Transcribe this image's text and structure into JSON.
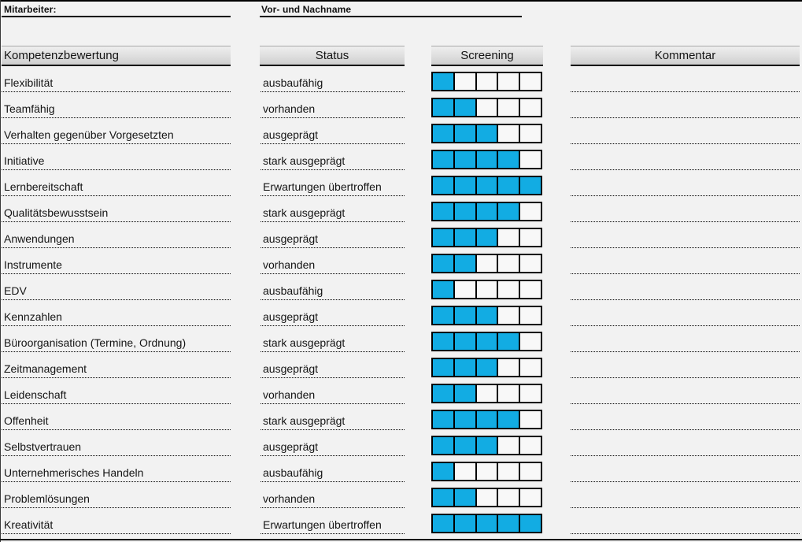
{
  "form": {
    "employee_label": "Mitarbeiter:",
    "employee_name_label": "Vor- und Nachname",
    "employee_name_value": ""
  },
  "table": {
    "headers": {
      "competency": "Kompetenzbewertung",
      "status": "Status",
      "screening": "Screening",
      "comment": "Kommentar"
    },
    "screening_max": 5,
    "rows": [
      {
        "competency": "Flexibilität",
        "status": "ausbaufähig",
        "screening": 1,
        "comment": ""
      },
      {
        "competency": "Teamfähig",
        "status": "vorhanden",
        "screening": 2,
        "comment": ""
      },
      {
        "competency": "Verhalten gegenüber Vorgesetzten",
        "status": "ausgeprägt",
        "screening": 3,
        "comment": ""
      },
      {
        "competency": "Initiative",
        "status": "stark ausgeprägt",
        "screening": 4,
        "comment": ""
      },
      {
        "competency": "Lernbereitschaft",
        "status": "Erwartungen übertroffen",
        "screening": 5,
        "comment": ""
      },
      {
        "competency": "Qualitätsbewusstsein",
        "status": "stark ausgeprägt",
        "screening": 4,
        "comment": ""
      },
      {
        "competency": "Anwendungen",
        "status": "ausgeprägt",
        "screening": 3,
        "comment": ""
      },
      {
        "competency": "Instrumente",
        "status": "vorhanden",
        "screening": 2,
        "comment": ""
      },
      {
        "competency": "EDV",
        "status": "ausbaufähig",
        "screening": 1,
        "comment": ""
      },
      {
        "competency": "Kennzahlen",
        "status": "ausgeprägt",
        "screening": 3,
        "comment": ""
      },
      {
        "competency": "Büroorganisation (Termine, Ordnung)",
        "status": "stark ausgeprägt",
        "screening": 4,
        "comment": ""
      },
      {
        "competency": "Zeitmanagement",
        "status": "ausgeprägt",
        "screening": 3,
        "comment": ""
      },
      {
        "competency": "Leidenschaft",
        "status": "vorhanden",
        "screening": 2,
        "comment": ""
      },
      {
        "competency": "Offenheit",
        "status": "stark ausgeprägt",
        "screening": 4,
        "comment": ""
      },
      {
        "competency": "Selbstvertrauen",
        "status": "ausgeprägt",
        "screening": 3,
        "comment": ""
      },
      {
        "competency": "Unternehmerisches Handeln",
        "status": "ausbaufähig",
        "screening": 1,
        "comment": ""
      },
      {
        "competency": "Problemlösungen",
        "status": "vorhanden",
        "screening": 2,
        "comment": ""
      },
      {
        "competency": "Kreativität",
        "status": "Erwartungen übertroffen",
        "screening": 5,
        "comment": ""
      }
    ]
  },
  "colors": {
    "screening_filled": "#12ace3",
    "screening_empty": "#f8f8f8",
    "background": "#f2f2f2",
    "header_fill": "#d9d9d9",
    "line": "#000000"
  }
}
